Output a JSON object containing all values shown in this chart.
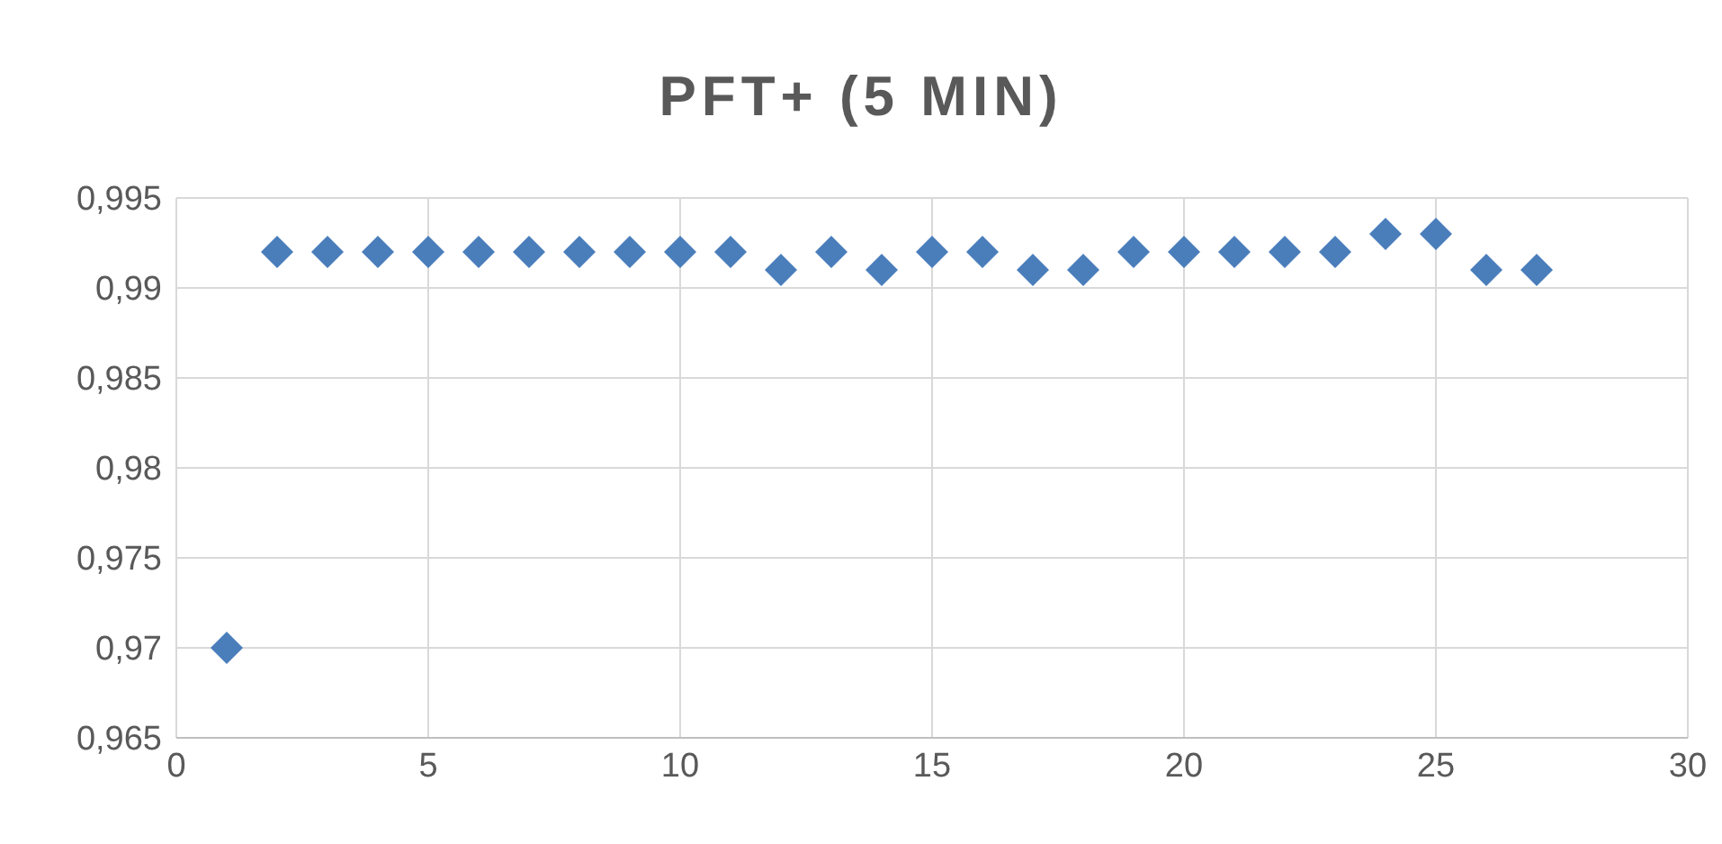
{
  "chart_data": {
    "type": "scatter",
    "title": "PFT+ (5 MIN)",
    "x": [
      1,
      2,
      3,
      4,
      5,
      6,
      7,
      8,
      9,
      10,
      11,
      12,
      13,
      14,
      15,
      16,
      17,
      18,
      19,
      20,
      21,
      22,
      23,
      24,
      25,
      26,
      27
    ],
    "series": [
      {
        "color": "#4a7ebb",
        "values": [
          0.97,
          0.992,
          0.992,
          0.992,
          0.992,
          0.992,
          0.992,
          0.992,
          0.992,
          0.992,
          0.992,
          0.991,
          0.992,
          0.991,
          0.992,
          0.992,
          0.991,
          0.991,
          0.992,
          0.992,
          0.992,
          0.992,
          0.992,
          0.993,
          0.993,
          0.991,
          0.991
        ]
      }
    ],
    "xlim": [
      0,
      30
    ],
    "xticks": [
      0,
      5,
      10,
      15,
      20,
      25,
      30
    ],
    "ylim": [
      0.965,
      0.995
    ],
    "yticks": [
      {
        "value": 0.965,
        "label": "0,965"
      },
      {
        "value": 0.97,
        "label": "0,97"
      },
      {
        "value": 0.975,
        "label": "0,975"
      },
      {
        "value": 0.98,
        "label": "0,98"
      },
      {
        "value": 0.985,
        "label": "0,985"
      },
      {
        "value": 0.99,
        "label": "0,99"
      },
      {
        "value": 0.995,
        "label": "0,995"
      }
    ],
    "grid": true,
    "marker": "diamond",
    "legend": false
  }
}
